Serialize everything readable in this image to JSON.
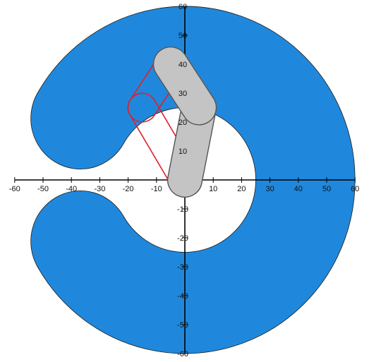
{
  "colors": {
    "workspace": "#2088dc",
    "arm": "#c4c4c4",
    "arm_outline": "#555555",
    "ghost_arm": "#e0202a",
    "axis": "#000000"
  },
  "chart_data": {
    "type": "diagram",
    "title": "",
    "xlim": [
      -60,
      60
    ],
    "ylim": [
      -60,
      60
    ],
    "x_ticks": [
      -60,
      -50,
      -40,
      -30,
      -20,
      -10,
      10,
      20,
      30,
      40,
      50,
      60
    ],
    "y_ticks": [
      60,
      50,
      40,
      30,
      20,
      10,
      -10,
      -20,
      -30,
      -40,
      -50,
      -60
    ],
    "x_tick_labels": [
      "-60",
      "-50",
      "-40",
      "-30",
      "-20",
      "-10",
      "10",
      "20",
      "30",
      "40",
      "50",
      "60"
    ],
    "y_tick_labels": [
      "60",
      "50",
      "40",
      "30",
      "20",
      "10",
      "-10",
      "-20",
      "-30",
      "-40",
      "-50",
      "-60"
    ],
    "workspace": {
      "outer_radius": 60,
      "inner_radius": 25,
      "start_angle_deg": 150,
      "sweep_deg": 300,
      "direction": "clockwise",
      "end_cap": "semicircle"
    },
    "arm_links": [
      {
        "name": "",
        "from": [
          0,
          0
        ],
        "to": [
          5,
          25
        ],
        "width": 12
      },
      {
        "name": "",
        "from": [
          5,
          25
        ],
        "to": [
          -5,
          40
        ],
        "width": 12
      }
    ],
    "ghost_links": [
      {
        "name": "",
        "from": [
          0,
          0
        ],
        "to": [
          -15,
          25
        ],
        "width": 10
      },
      {
        "name": "",
        "from": [
          -15,
          25
        ],
        "to": [
          -5,
          40
        ],
        "width": 10
      }
    ]
  }
}
